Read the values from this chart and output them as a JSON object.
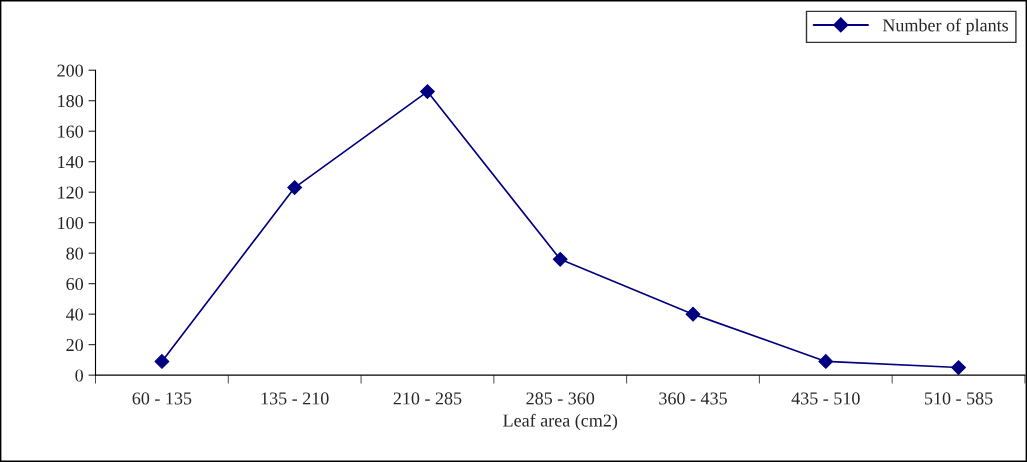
{
  "chart_data": {
    "type": "line",
    "xlabel": "Leaf area (cm2)",
    "categories": [
      "60 - 135",
      "135 - 210",
      "210 - 285",
      "285 - 360",
      "360 - 435",
      "435 - 510",
      "510 - 585"
    ],
    "series": [
      {
        "name": "Number of plants",
        "color": "#000080",
        "values": [
          9,
          123,
          186,
          76,
          40,
          9,
          5
        ]
      }
    ],
    "ylim": [
      0,
      200
    ],
    "yticks": [
      0,
      20,
      40,
      60,
      80,
      100,
      120,
      140,
      160,
      180,
      200
    ],
    "grid": false,
    "legend": "top right",
    "marker": "diamond",
    "line_style": "solid"
  }
}
